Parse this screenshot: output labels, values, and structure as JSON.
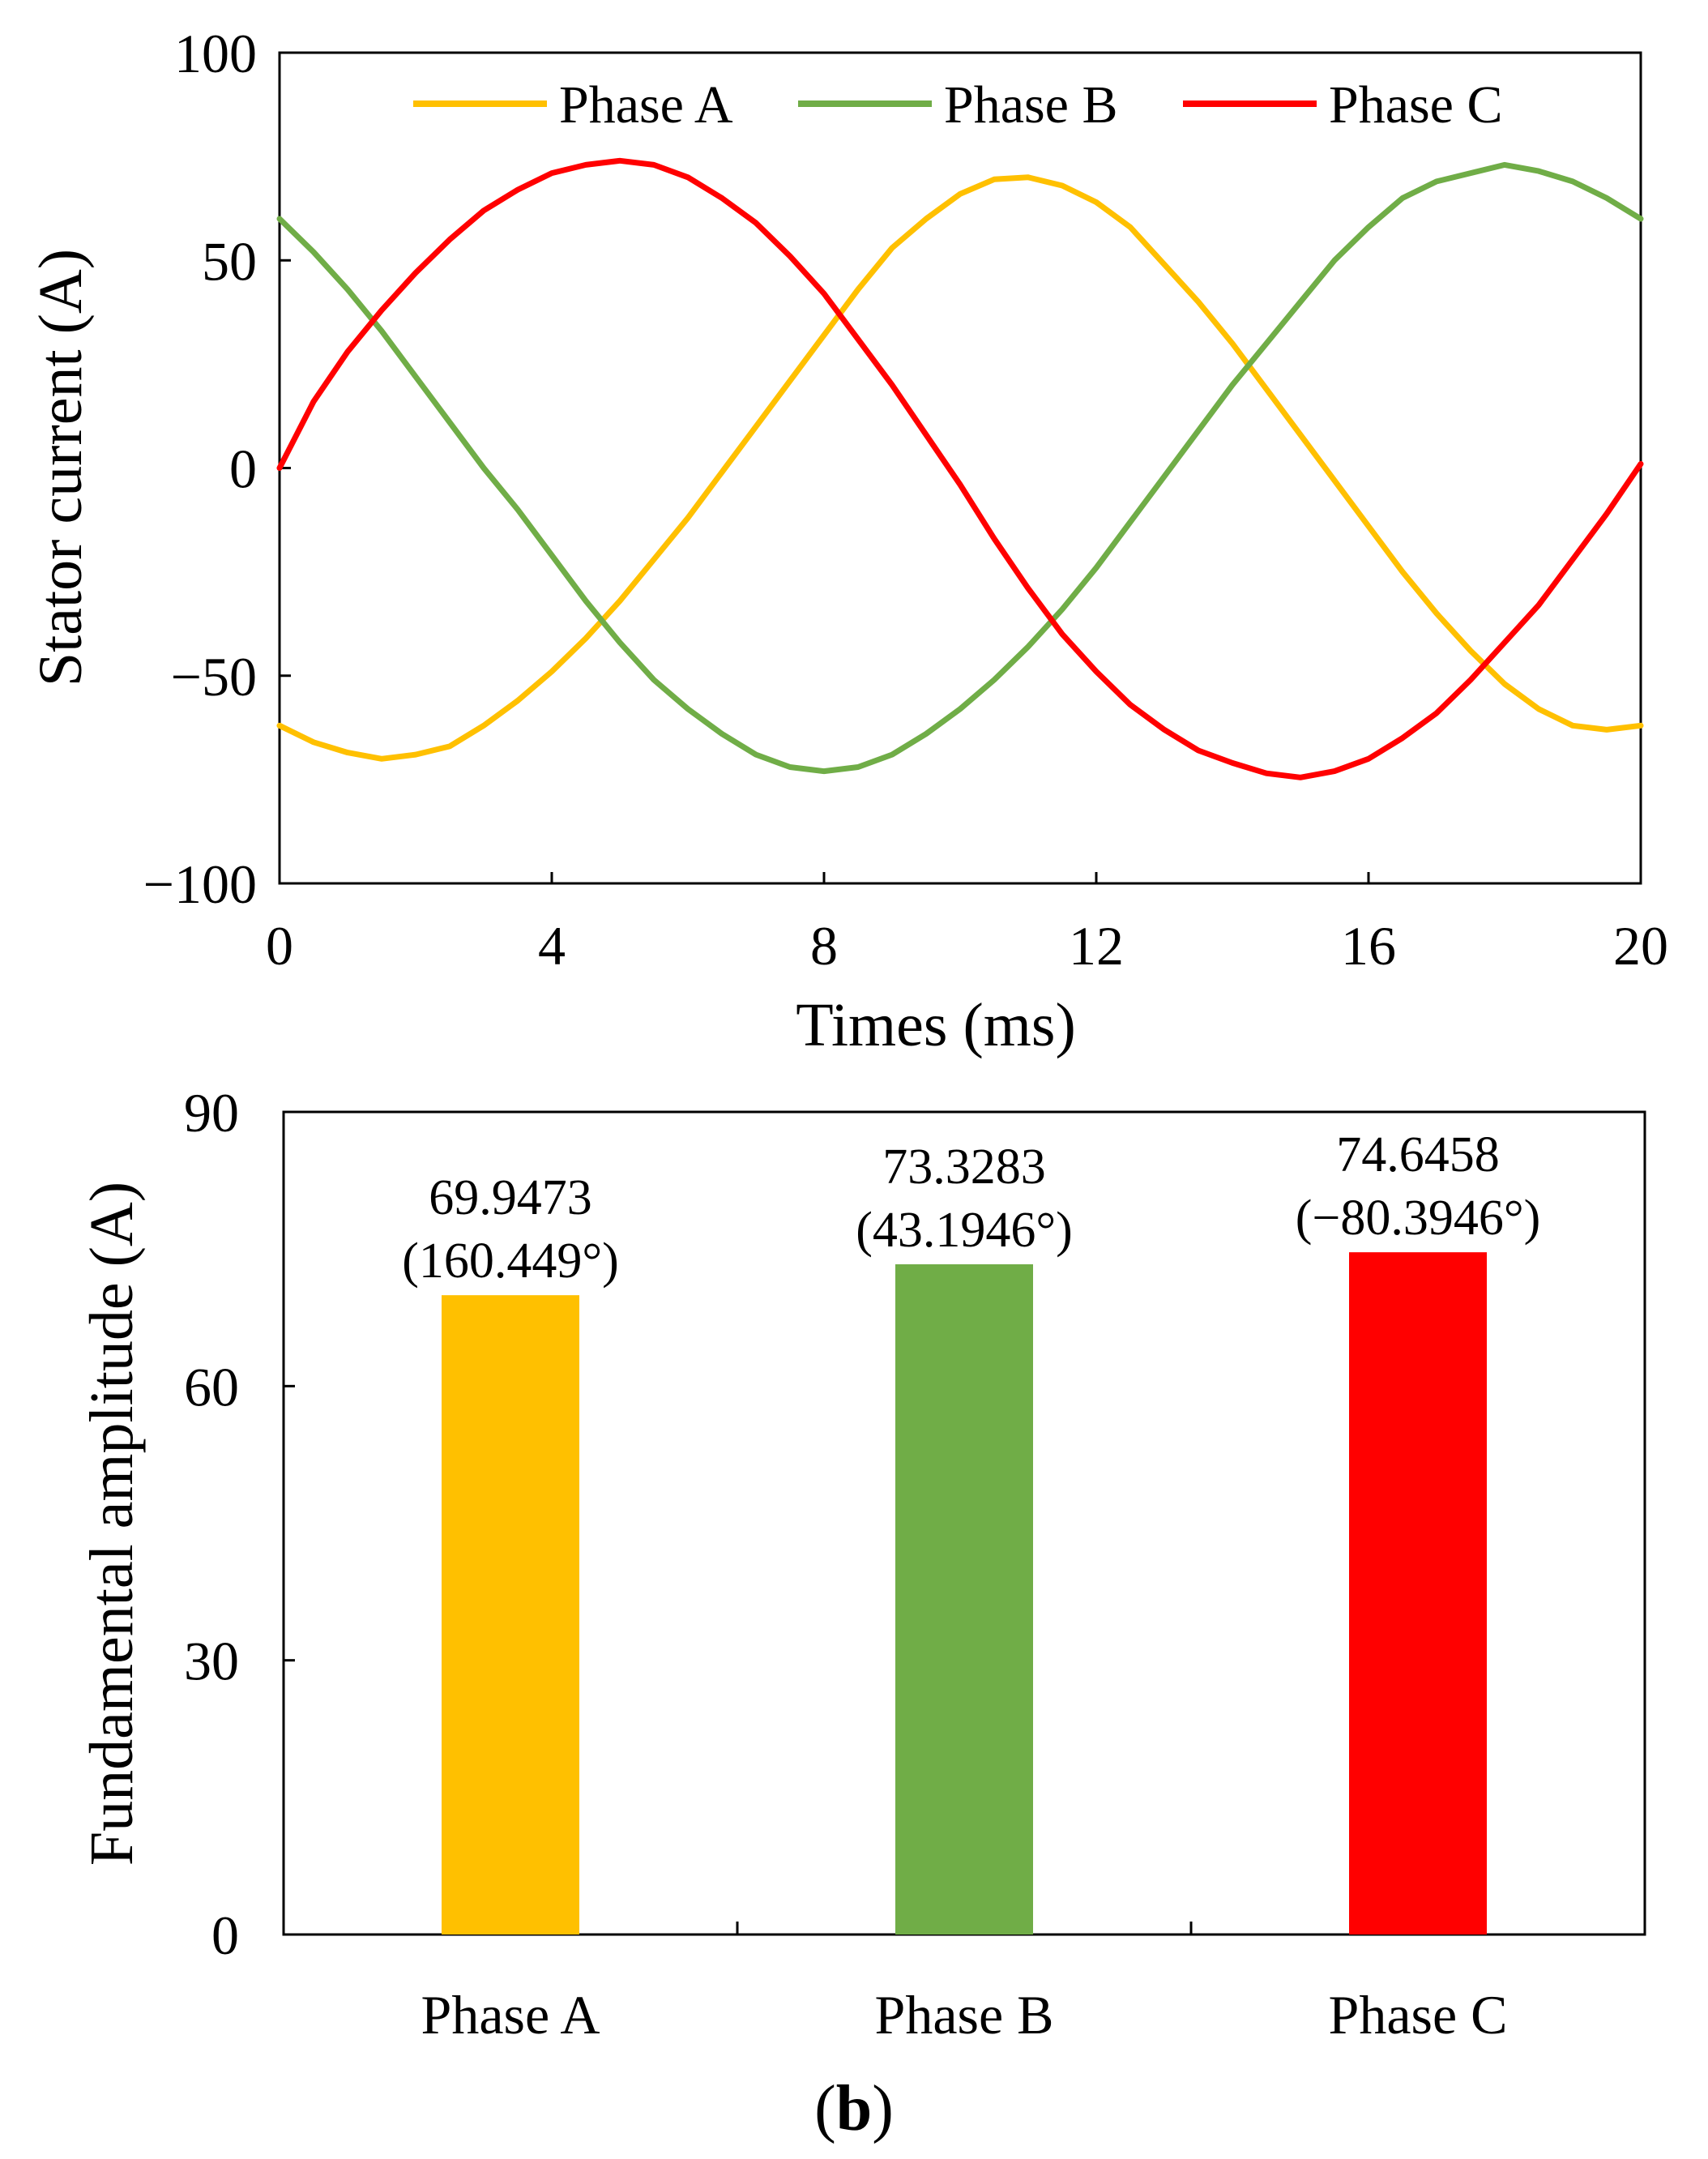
{
  "chart_data": [
    {
      "type": "line",
      "xlabel": "Times (ms)",
      "ylabel": "Stator current (A)",
      "xlim": [
        0,
        20
      ],
      "ylim": [
        -100,
        100
      ],
      "xticks": [
        0,
        4,
        8,
        12,
        16,
        20
      ],
      "yticks": [
        -100,
        -50,
        0,
        50,
        100
      ],
      "ytick_labels": [
        "−100",
        "−50",
        "0",
        "50",
        "100"
      ],
      "grid": false,
      "legend_placement": "top",
      "x": [
        0,
        0.5,
        1,
        1.5,
        2,
        2.5,
        3,
        3.5,
        4,
        4.5,
        5,
        5.5,
        6,
        6.5,
        7,
        7.5,
        8,
        8.5,
        9,
        9.5,
        10,
        10.5,
        11,
        11.5,
        12,
        12.5,
        13,
        13.5,
        14,
        14.5,
        15,
        15.5,
        16,
        16.5,
        17,
        17.5,
        18,
        18.5,
        19,
        19.5,
        20
      ],
      "series": [
        {
          "name": "Phase A",
          "color": "#FFC000",
          "values": [
            -62,
            -66,
            -68.5,
            -70,
            -69,
            -67,
            -62,
            -56,
            -49,
            -41,
            -32,
            -22,
            -12,
            -1,
            10,
            21,
            32,
            43,
            53,
            60,
            66,
            69.5,
            70,
            68,
            64,
            58,
            49,
            40,
            30,
            19,
            8,
            -3,
            -14,
            -25,
            -35,
            -44,
            -52,
            -58,
            -62,
            -63,
            -62
          ],
          "color_name": "yellow"
        },
        {
          "name": "Phase B",
          "color": "#70AD47",
          "values": [
            60,
            52,
            43,
            33,
            22,
            11,
            0,
            -10,
            -21,
            -32,
            -42,
            -51,
            -58,
            -64,
            -69,
            -72,
            -73,
            -72,
            -69,
            -64,
            -58,
            -51,
            -43,
            -34,
            -24,
            -13,
            -2,
            9,
            20,
            30,
            40,
            50,
            58,
            65,
            69,
            71,
            73,
            71.5,
            69,
            65,
            60
          ],
          "color_name": "green"
        },
        {
          "name": "Phase C",
          "color": "#FF0000",
          "values": [
            0,
            16,
            28,
            38,
            47,
            55,
            62,
            67,
            71,
            73,
            74,
            73,
            70,
            65,
            59,
            51,
            42,
            31,
            20,
            8,
            -4,
            -17,
            -29,
            -40,
            -49,
            -57,
            -63,
            -68,
            -71,
            -73.5,
            -74.5,
            -73,
            -70,
            -65,
            -59,
            -51,
            -42,
            -33,
            -22,
            -11,
            1
          ],
          "color_name": "red"
        }
      ]
    },
    {
      "type": "bar",
      "categories": [
        "Phase A",
        "Phase B",
        "Phase C"
      ],
      "values": [
        69.9473,
        73.3283,
        74.6458
      ],
      "value_labels": [
        "69.9473",
        "73.3283",
        "74.6458"
      ],
      "phase_labels": [
        "(160.449°)",
        "(43.1946°)",
        "(−80.3946°)"
      ],
      "colors": [
        "#FFC000",
        "#70AD47",
        "#FF0000"
      ],
      "ylabel": "Fundamental amplitude  (A)",
      "ylim": [
        0,
        90
      ],
      "yticks": [
        0,
        30,
        60,
        90
      ],
      "grid": false
    }
  ],
  "panel_label": {
    "open": "(",
    "letter": "b",
    "close": ")"
  }
}
